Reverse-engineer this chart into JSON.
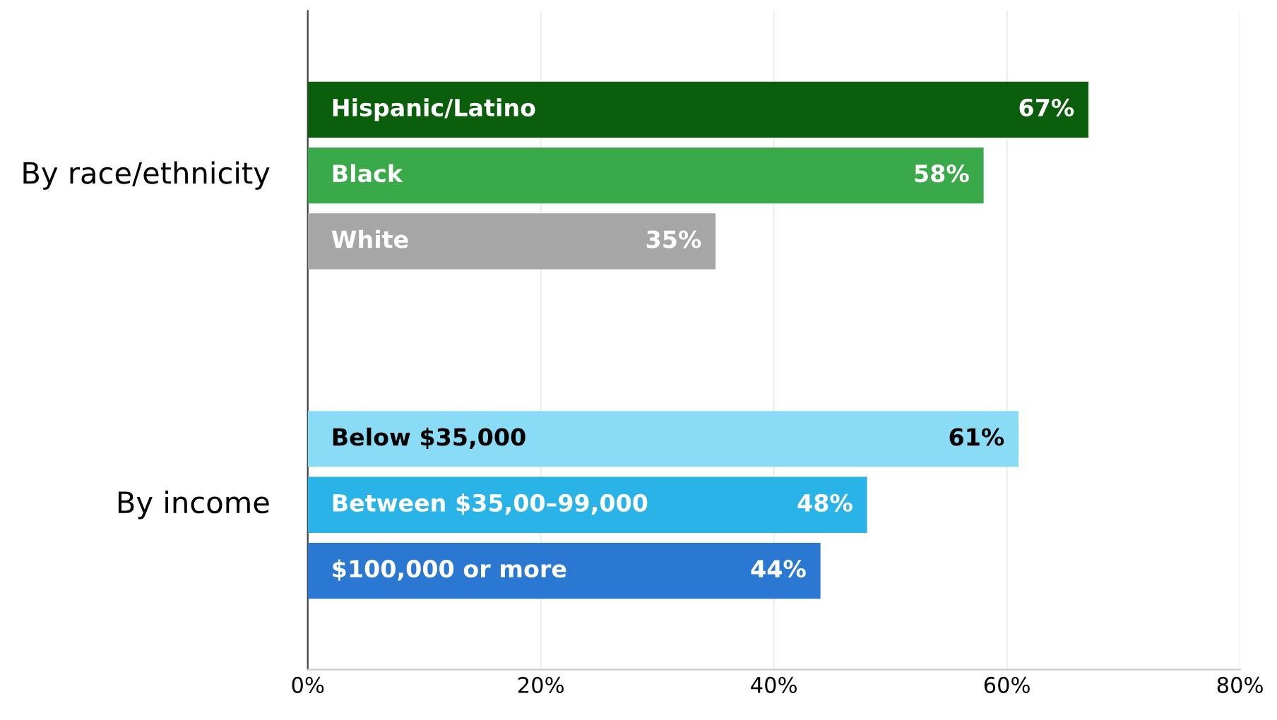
{
  "chart_data": {
    "type": "bar",
    "orientation": "horizontal",
    "categories": [
      null,
      "Hispanic/Latino",
      "Black",
      "White",
      null,
      null,
      "Below $35,000",
      "Between $35,00–99,000",
      "$100,000 or more",
      null
    ],
    "values": [
      null,
      67,
      58,
      35,
      null,
      null,
      61,
      48,
      44,
      null
    ],
    "colors": [
      "#ffffff",
      "#0b5e0b",
      "#3aa94a",
      "#a6a6a6",
      "#ffffff",
      "#ffffff",
      "#8adcf6",
      "#2ab3e6",
      "#2a78d1",
      "#ffffff"
    ],
    "value_labels": [
      null,
      "67%",
      "58%",
      "35%",
      null,
      null,
      "61%",
      "48%",
      "44%",
      null
    ],
    "annotations": [
      "By race/ethnicity",
      "By income"
    ],
    "xlim": [
      0,
      80
    ],
    "xticks": [
      {
        "value": 0,
        "label": "0%"
      },
      {
        "value": 20,
        "label": "20%"
      },
      {
        "value": 40,
        "label": "40%"
      },
      {
        "value": 60,
        "label": "60%"
      },
      {
        "value": 80,
        "label": "80%"
      }
    ],
    "grid": "x"
  }
}
